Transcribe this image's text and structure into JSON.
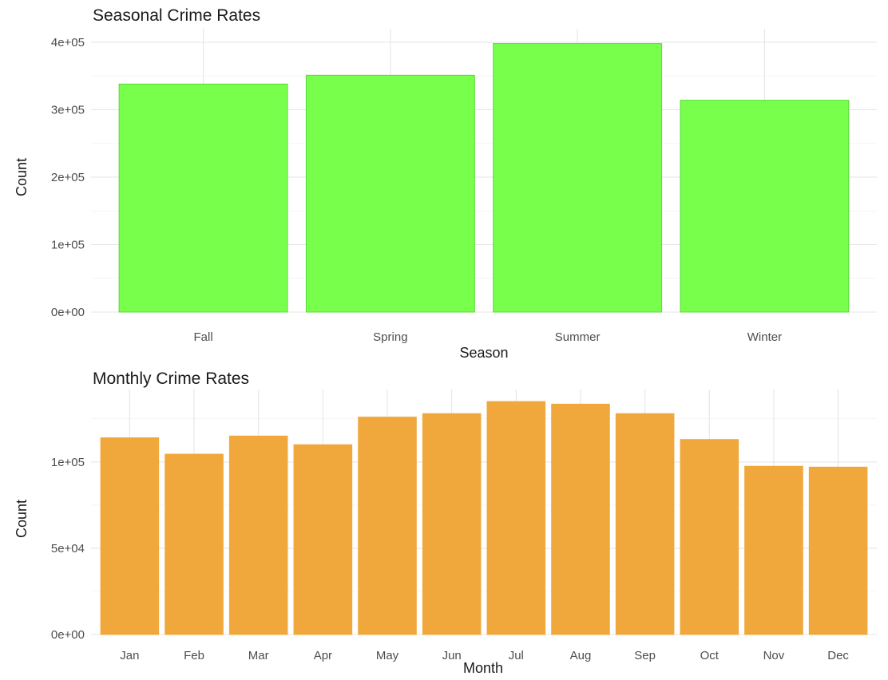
{
  "chart_data": [
    {
      "type": "bar",
      "title": "Seasonal Crime Rates",
      "xlabel": "Season",
      "ylabel": "Count",
      "categories": [
        "Fall",
        "Spring",
        "Summer",
        "Winter"
      ],
      "values": [
        338000,
        351000,
        398000,
        314000
      ],
      "ylim": [
        0,
        420000
      ],
      "yticks": [
        0,
        100000,
        200000,
        300000,
        400000
      ],
      "ytick_labels": [
        "0e+00",
        "1e+05",
        "2e+05",
        "3e+05",
        "4e+05"
      ],
      "bar_color": "#77FF4C",
      "bar_edge_color": "#5CD83A",
      "grid": true,
      "legend": "none"
    },
    {
      "type": "bar",
      "title": "Monthly Crime Rates",
      "xlabel": "Month",
      "ylabel": "Count",
      "categories": [
        "Jan",
        "Feb",
        "Mar",
        "Apr",
        "May",
        "Jun",
        "Jul",
        "Aug",
        "Sep",
        "Oct",
        "Nov",
        "Dec"
      ],
      "values": [
        114000,
        104500,
        115000,
        110000,
        126000,
        128000,
        135000,
        133500,
        128000,
        113000,
        97500,
        97000
      ],
      "ylim": [
        0,
        142000
      ],
      "yticks": [
        0,
        50000,
        100000
      ],
      "ytick_labels": [
        "0e+00",
        "5e+04",
        "1e+05"
      ],
      "bar_color": "#F0A83C",
      "bar_edge_color": "#F0A83C",
      "grid": true,
      "legend": "none"
    }
  ]
}
